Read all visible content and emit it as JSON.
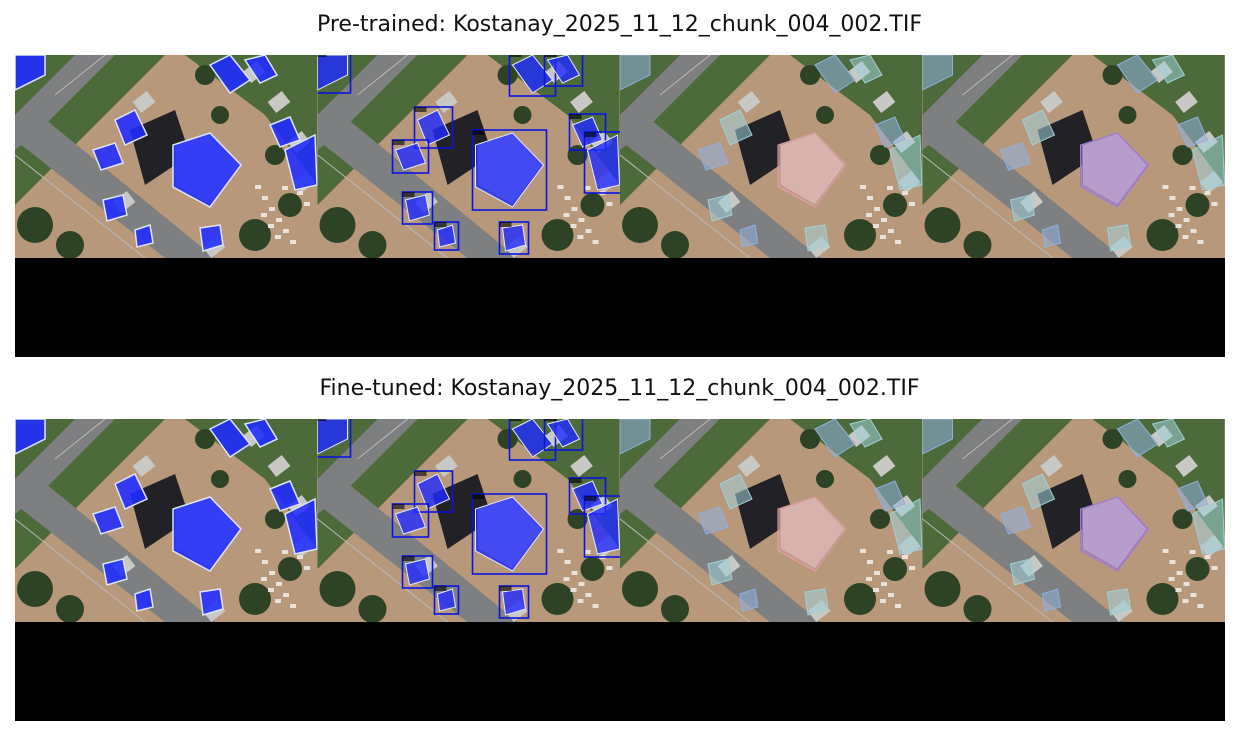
{
  "figures": [
    {
      "title": "Pre-trained: Kostanay_2025_11_12_chunk_004_002.TIF",
      "panels": [
        "prediction-mask",
        "prediction-boxes",
        "ground-truth-overlay",
        "prediction-overlay"
      ]
    },
    {
      "title": "Fine-tuned: Kostanay_2025_11_12_chunk_004_002.TIF",
      "panels": [
        "prediction-mask",
        "prediction-boxes",
        "ground-truth-overlay",
        "prediction-overlay"
      ]
    }
  ],
  "colors": {
    "mask_blue": "#1f2bff",
    "box_blue": "#0a14e0",
    "dirt": "#b8987a",
    "road": "#7d7f80",
    "grass": "#4d6a3a",
    "tree": "#2e4326",
    "shadow": "#222226",
    "gt_pink": "#e0a0a0",
    "gt_cyan": "#9fd0d8",
    "pred_purple": "#a27ad8",
    "padding": "#000000"
  }
}
